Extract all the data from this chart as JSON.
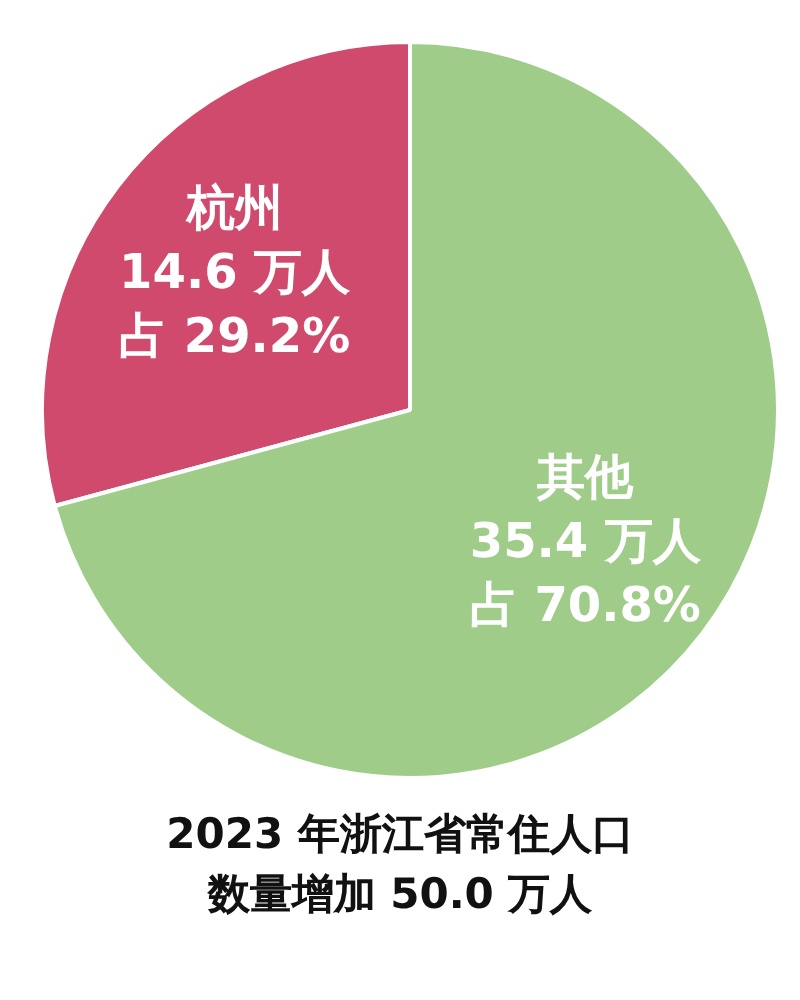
{
  "chart_data": {
    "type": "pie",
    "title": "2023 年浙江省常住人口",
    "subtitle": "数量增加 50.0 万人",
    "categories": [
      "杭州",
      "其他"
    ],
    "values": [
      14.6,
      35.4
    ],
    "colors": [
      "#cf4a6c",
      "#9fcd89"
    ],
    "value_labels": [
      "14.6 万人",
      "35.4 万人"
    ],
    "annotations": [
      {
        "text": "占 29.2%",
        "x": "杭州"
      },
      {
        "text": "占 70.8%",
        "x": "其他"
      }
    ],
    "legend": false
  }
}
